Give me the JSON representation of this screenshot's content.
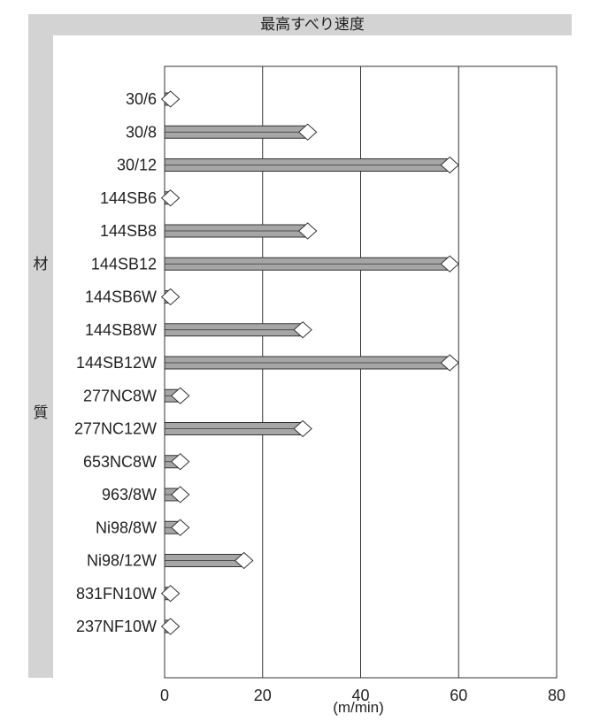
{
  "chart_data": {
    "type": "bar",
    "orientation": "horizontal",
    "title": "最高すべり速度",
    "ylabel": [
      "材",
      "質"
    ],
    "xlabel": "(m/min)",
    "xlim": [
      0,
      80
    ],
    "xticks": [
      "0",
      "20",
      "40",
      "60",
      "80"
    ],
    "grid": "vertical",
    "categories": [
      "30/6",
      "30/8",
      "30/12",
      "144SB6",
      "144SB8",
      "144SB12",
      "144SB6W",
      "144SB8W",
      "144SB12W",
      "277NC8W",
      "277NC12W",
      "653NC8W",
      "963/8W",
      "Ni98/8W",
      "Ni98/12W",
      "831FN10W",
      "237NF10W"
    ],
    "values": [
      3,
      31,
      60,
      3,
      31,
      60,
      3,
      30,
      60,
      5,
      30,
      5,
      5,
      5,
      18,
      3,
      3
    ]
  },
  "colors": {
    "frame": "#d3d3d3",
    "bar": "#a6a6a6",
    "bar_outline": "#333333",
    "tip": "#ffffff"
  }
}
